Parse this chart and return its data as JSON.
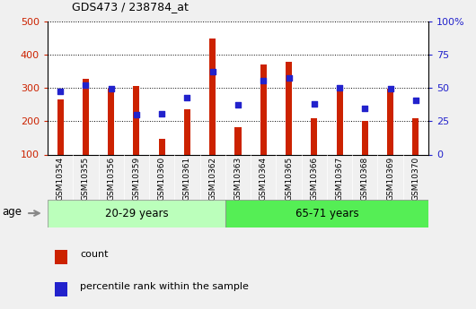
{
  "title": "GDS473 / 238784_at",
  "samples": [
    "GSM10354",
    "GSM10355",
    "GSM10356",
    "GSM10359",
    "GSM10360",
    "GSM10361",
    "GSM10362",
    "GSM10363",
    "GSM10364",
    "GSM10365",
    "GSM10366",
    "GSM10367",
    "GSM10368",
    "GSM10369",
    "GSM10370"
  ],
  "counts": [
    265,
    327,
    298,
    305,
    148,
    237,
    448,
    183,
    370,
    378,
    210,
    300,
    202,
    298,
    208
  ],
  "percentiles_left_scale": [
    290,
    310,
    298,
    220,
    222,
    270,
    350,
    250,
    322,
    330,
    253,
    302,
    238,
    298,
    263
  ],
  "group1_label": "20-29 years",
  "group2_label": "65-71 years",
  "group1_count": 7,
  "group2_count": 8,
  "bar_color": "#cc2200",
  "dot_color": "#2222cc",
  "group1_color": "#bbffbb",
  "group2_color": "#55ee55",
  "xtick_band_color": "#c8c8c8",
  "ylim_left": [
    100,
    500
  ],
  "ylim_right": [
    0,
    100
  ],
  "yticks_left": [
    100,
    200,
    300,
    400,
    500
  ],
  "yticks_right": [
    0,
    25,
    50,
    75,
    100
  ],
  "ytick_labels_right": [
    "0",
    "25",
    "50",
    "75",
    "100%"
  ],
  "bg_color": "#f0f0f0",
  "plot_bg": "#ffffff",
  "legend_count": "count",
  "legend_pct": "percentile rank within the sample",
  "age_label": "age"
}
